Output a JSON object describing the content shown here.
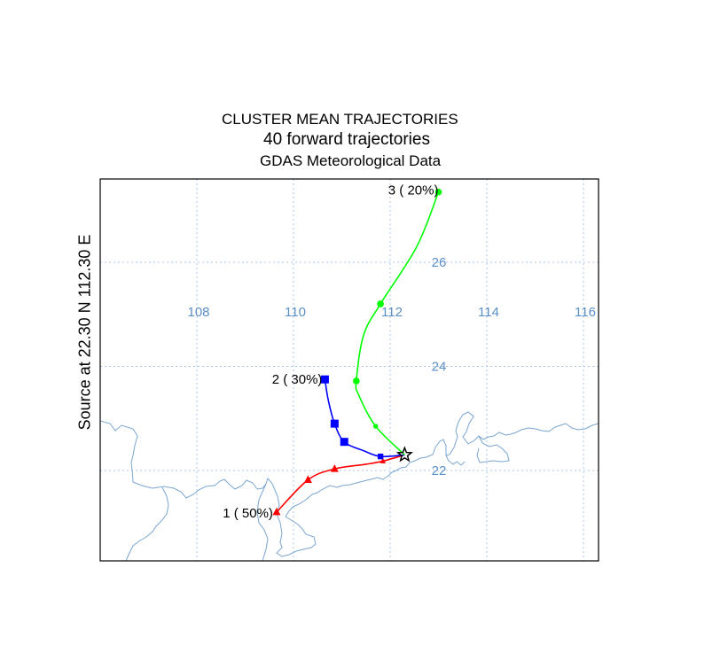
{
  "title": {
    "line1": "CLUSTER MEAN TRAJECTORIES",
    "line2": "40 forward trajectories",
    "line3": "GDAS Meteorological Data"
  },
  "source_label": "Source    at    22.30 N   112.30 E",
  "map": {
    "lon_ticks": [
      108,
      110,
      112,
      114,
      116
    ],
    "lat_ticks": [
      22,
      24,
      26
    ],
    "source": {
      "lat": 22.3,
      "lon": 112.3
    },
    "gridline_color": "#a9c4e4",
    "tick_label_color": "#5b8fc7",
    "coast_color": "#7aa6d1"
  },
  "chart_data": {
    "type": "map",
    "series": [
      {
        "label": "1 ( 50%)",
        "color": "#ff0000",
        "marker": "triangle",
        "points": [
          {
            "lon": 112.3,
            "lat": 22.3
          },
          {
            "lon": 111.85,
            "lat": 22.18
          },
          {
            "lon": 111.5,
            "lat": 22.12
          },
          {
            "lon": 110.85,
            "lat": 22.03
          },
          {
            "lon": 110.3,
            "lat": 21.82
          },
          {
            "lon": 109.65,
            "lat": 21.2
          }
        ],
        "markers_at": [
          1,
          3,
          4,
          5
        ]
      },
      {
        "label": "2 ( 30%)",
        "color": "#0000ff",
        "marker": "square",
        "points": [
          {
            "lon": 112.3,
            "lat": 22.3
          },
          {
            "lon": 111.8,
            "lat": 22.27
          },
          {
            "lon": 111.45,
            "lat": 22.38
          },
          {
            "lon": 111.05,
            "lat": 22.55
          },
          {
            "lon": 110.85,
            "lat": 22.9
          },
          {
            "lon": 110.72,
            "lat": 23.35
          },
          {
            "lon": 110.65,
            "lat": 23.75
          }
        ],
        "markers_at": [
          1,
          3,
          4,
          6
        ]
      },
      {
        "label": "3 ( 20%)",
        "color": "#00ff00",
        "marker": "circle",
        "points": [
          {
            "lon": 112.3,
            "lat": 22.3
          },
          {
            "lon": 111.7,
            "lat": 22.85
          },
          {
            "lon": 111.35,
            "lat": 23.45
          },
          {
            "lon": 111.3,
            "lat": 23.72
          },
          {
            "lon": 111.45,
            "lat": 24.6
          },
          {
            "lon": 111.8,
            "lat": 25.2
          },
          {
            "lon": 112.55,
            "lat": 26.3
          },
          {
            "lon": 113.0,
            "lat": 27.35
          }
        ],
        "markers_at": [
          1,
          3,
          5,
          7
        ]
      }
    ]
  }
}
